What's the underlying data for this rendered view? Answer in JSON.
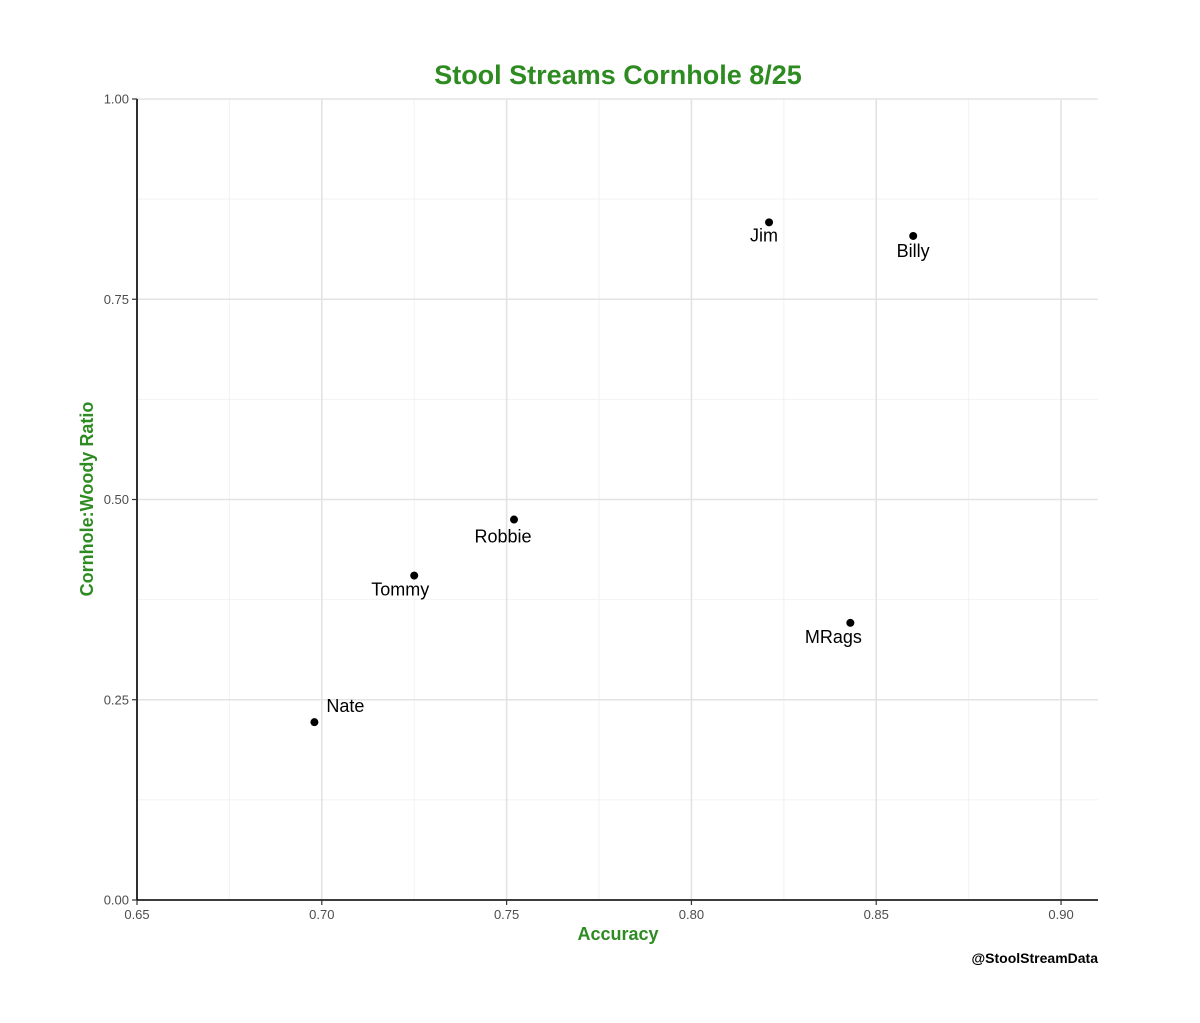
{
  "chart_data": {
    "type": "scatter",
    "title": "Stool Streams Cornhole 8/25",
    "xlabel": "Accuracy",
    "ylabel": "Cornhole:Woody Ratio",
    "caption": "@StoolStreamData",
    "xlim": [
      0.65,
      0.91
    ],
    "ylim": [
      0.0,
      1.0
    ],
    "x_ticks": [
      0.65,
      0.7,
      0.75,
      0.8,
      0.85,
      0.9
    ],
    "x_tick_labels": [
      "0.65",
      "0.70",
      "0.75",
      "0.80",
      "0.85",
      "0.90"
    ],
    "y_ticks": [
      0.0,
      0.25,
      0.5,
      0.75,
      1.0
    ],
    "y_tick_labels": [
      "0.00",
      "0.25",
      "0.50",
      "0.75",
      "1.00"
    ],
    "grid": true,
    "points": [
      {
        "label": "Jim",
        "x": 0.821,
        "y": 0.846
      },
      {
        "label": "Billy",
        "x": 0.86,
        "y": 0.829
      },
      {
        "label": "Robbie",
        "x": 0.752,
        "y": 0.475
      },
      {
        "label": "Tommy",
        "x": 0.725,
        "y": 0.405
      },
      {
        "label": "MRags",
        "x": 0.843,
        "y": 0.346
      },
      {
        "label": "Nate",
        "x": 0.698,
        "y": 0.222
      }
    ],
    "colors": {
      "title": "#2e8b22",
      "axis_title": "#2e8b22",
      "point": "#000000",
      "grid_major": "#e3e3e3",
      "grid_minor": "#f2f2f2",
      "axis_line": "#000000"
    }
  }
}
